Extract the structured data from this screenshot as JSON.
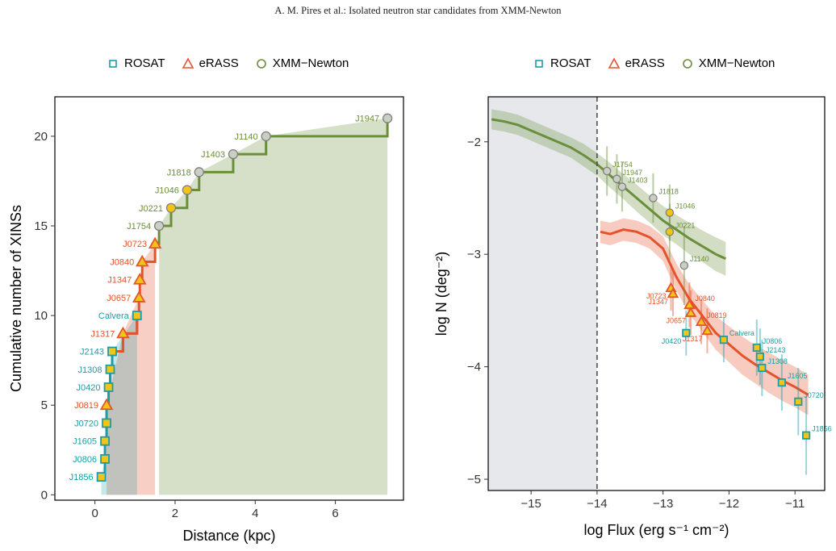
{
  "header": {
    "running_head": "A. M. Pires et al.: Isolated neutron star candidates from XMM-Newton"
  },
  "colors": {
    "rosat": "#1A9DA6",
    "erass": "#E5532A",
    "xmm": "#6B8E3C",
    "marker_fill": "#F2C418",
    "xmm_grey_fill": "#C9CFC2",
    "shade": "#E6E8EC"
  },
  "legend": [
    {
      "label": "ROSAT",
      "symbol": "square",
      "color": "#1A9DA6"
    },
    {
      "label": "eRASS",
      "symbol": "triangle",
      "color": "#E5532A"
    },
    {
      "label": "XMM−Newton",
      "symbol": "circle",
      "color": "#6B8E3C"
    }
  ],
  "chart_data": [
    {
      "type": "line",
      "xlabel": "Distance (kpc)",
      "ylabel": "Cumulative number of XINSs",
      "xlim": [
        -1.0,
        7.7
      ],
      "ylim": [
        -0.3,
        22.2
      ],
      "xticks": [
        0,
        2,
        4,
        6
      ],
      "yticks": [
        0,
        5,
        10,
        15,
        20
      ],
      "grid": false,
      "legend_position": "top",
      "points": [
        {
          "label": "J1856",
          "x": 0.16,
          "y": 1,
          "survey": "ROSAT",
          "fill": "yellow"
        },
        {
          "label": "J0806",
          "x": 0.25,
          "y": 2,
          "survey": "ROSAT",
          "fill": "yellow"
        },
        {
          "label": "J1605",
          "x": 0.25,
          "y": 3,
          "survey": "ROSAT",
          "fill": "yellow"
        },
        {
          "label": "J0720",
          "x": 0.29,
          "y": 4,
          "survey": "ROSAT",
          "fill": "yellow"
        },
        {
          "label": "J0819",
          "x": 0.29,
          "y": 5,
          "survey": "eRASS",
          "fill": "yellow"
        },
        {
          "label": "J0420",
          "x": 0.34,
          "y": 6,
          "survey": "ROSAT",
          "fill": "yellow"
        },
        {
          "label": "J1308",
          "x": 0.38,
          "y": 7,
          "survey": "ROSAT",
          "fill": "yellow"
        },
        {
          "label": "J2143",
          "x": 0.43,
          "y": 8,
          "survey": "ROSAT",
          "fill": "yellow"
        },
        {
          "label": "J1317",
          "x": 0.7,
          "y": 9,
          "survey": "eRASS",
          "fill": "yellow"
        },
        {
          "label": "Calvera",
          "x": 1.05,
          "y": 10,
          "survey": "ROSAT",
          "fill": "yellow"
        },
        {
          "label": "J0657",
          "x": 1.1,
          "y": 11,
          "survey": "eRASS",
          "fill": "yellow"
        },
        {
          "label": "J1347",
          "x": 1.12,
          "y": 12,
          "survey": "eRASS",
          "fill": "yellow"
        },
        {
          "label": "J0840",
          "x": 1.18,
          "y": 13,
          "survey": "eRASS",
          "fill": "yellow"
        },
        {
          "label": "J0723",
          "x": 1.5,
          "y": 14,
          "survey": "eRASS",
          "fill": "yellow"
        },
        {
          "label": "J1754",
          "x": 1.6,
          "y": 15,
          "survey": "XMM",
          "fill": "grey"
        },
        {
          "label": "J0221",
          "x": 1.9,
          "y": 16,
          "survey": "XMM",
          "fill": "yellow"
        },
        {
          "label": "J1046",
          "x": 2.3,
          "y": 17,
          "survey": "XMM",
          "fill": "yellow"
        },
        {
          "label": "J1818",
          "x": 2.6,
          "y": 18,
          "survey": "XMM",
          "fill": "grey"
        },
        {
          "label": "J1403",
          "x": 3.45,
          "y": 19,
          "survey": "XMM",
          "fill": "grey"
        },
        {
          "label": "J1140",
          "x": 4.27,
          "y": 20,
          "survey": "XMM",
          "fill": "grey"
        },
        {
          "label": "J1947",
          "x": 7.3,
          "y": 21,
          "survey": "XMM",
          "fill": "grey"
        }
      ]
    },
    {
      "type": "line",
      "xlabel": "log Flux (erg s⁻¹ cm⁻²)",
      "ylabel": "log N (deg⁻²)",
      "xlim": [
        -15.65,
        -10.55
      ],
      "ylim": [
        -5.1,
        -1.6
      ],
      "xticks": [
        -15,
        -14,
        -13,
        -12,
        -11
      ],
      "yticks": [
        -2,
        -3,
        -4,
        -5
      ],
      "vline_x": -14,
      "grid": false,
      "legend_position": "top",
      "series": [
        {
          "name": "XMM−Newton",
          "x": [
            -15.6,
            -15.4,
            -15.2,
            -15.0,
            -14.8,
            -14.6,
            -14.4,
            -14.2,
            -14.0,
            -13.8,
            -13.6,
            -13.4,
            -13.2,
            -13.0,
            -12.8,
            -12.6,
            -12.4,
            -12.2,
            -12.05
          ],
          "y": [
            -1.8,
            -1.82,
            -1.85,
            -1.9,
            -1.95,
            -2.0,
            -2.05,
            -2.12,
            -2.2,
            -2.3,
            -2.4,
            -2.5,
            -2.6,
            -2.7,
            -2.78,
            -2.86,
            -2.93,
            -3.0,
            -3.04
          ],
          "band": [
            0.09,
            0.09,
            0.09,
            0.09,
            0.09,
            0.09,
            0.09,
            0.1,
            0.1,
            0.11,
            0.11,
            0.12,
            0.12,
            0.13,
            0.13,
            0.14,
            0.14,
            0.15,
            0.15
          ]
        },
        {
          "name": "eRASS",
          "x": [
            -13.95,
            -13.8,
            -13.6,
            -13.4,
            -13.2,
            -13.0,
            -12.8,
            -12.6,
            -12.4,
            -12.2,
            -12.0,
            -11.8,
            -11.6,
            -11.4,
            -11.2,
            -11.0,
            -10.8
          ],
          "y": [
            -2.8,
            -2.82,
            -2.78,
            -2.8,
            -2.85,
            -2.95,
            -3.2,
            -3.4,
            -3.55,
            -3.7,
            -3.8,
            -3.9,
            -3.98,
            -4.05,
            -4.12,
            -4.18,
            -4.25
          ],
          "band": [
            0.1,
            0.1,
            0.1,
            0.1,
            0.1,
            0.11,
            0.12,
            0.13,
            0.14,
            0.15,
            0.16,
            0.17,
            0.17,
            0.18,
            0.18,
            0.18,
            0.18
          ]
        }
      ],
      "points": [
        {
          "label": "J1754",
          "x": -13.85,
          "y": -2.26,
          "survey": "XMM",
          "fill": "grey",
          "err": 0.22
        },
        {
          "label": "J1947",
          "x": -13.7,
          "y": -2.33,
          "survey": "XMM",
          "fill": "grey",
          "err": 0.22
        },
        {
          "label": "J1403",
          "x": -13.62,
          "y": -2.4,
          "survey": "XMM",
          "fill": "grey",
          "err": 0.22
        },
        {
          "label": "J1818",
          "x": -13.15,
          "y": -2.5,
          "survey": "XMM",
          "fill": "grey",
          "err": 0.22
        },
        {
          "label": "J1046",
          "x": -12.9,
          "y": -2.63,
          "survey": "XMM",
          "fill": "yellow",
          "err": 0.25
        },
        {
          "label": "J0221",
          "x": -12.9,
          "y": -2.8,
          "survey": "XMM",
          "fill": "yellow",
          "err": 0.25
        },
        {
          "label": "J1140",
          "x": -12.68,
          "y": -3.1,
          "survey": "XMM",
          "fill": "grey",
          "err": 0.35
        },
        {
          "label": "J0723",
          "x": -12.88,
          "y": -3.3,
          "survey": "eRASS",
          "fill": "yellow",
          "err": 0.2
        },
        {
          "label": "J1347",
          "x": -12.85,
          "y": -3.35,
          "survey": "eRASS",
          "fill": "yellow",
          "err": 0.2
        },
        {
          "label": "J0840",
          "x": -12.6,
          "y": -3.45,
          "survey": "eRASS",
          "fill": "yellow",
          "err": 0.2
        },
        {
          "label": "J0819",
          "x": -12.42,
          "y": -3.6,
          "survey": "eRASS",
          "fill": "yellow",
          "err": 0.2
        },
        {
          "label": "J0657",
          "x": -12.58,
          "y": -3.52,
          "survey": "eRASS",
          "fill": "yellow",
          "err": 0.2
        },
        {
          "label": "J1317",
          "x": -12.33,
          "y": -3.68,
          "survey": "eRASS",
          "fill": "yellow",
          "err": 0.2
        },
        {
          "label": "Calvera",
          "x": -12.08,
          "y": -3.76,
          "survey": "ROSAT",
          "fill": "yellow",
          "err": 0.2
        },
        {
          "label": "J0420",
          "x": -12.65,
          "y": -3.7,
          "survey": "ROSAT",
          "fill": "yellow",
          "err": 0.2
        },
        {
          "label": "J0806",
          "x": -11.58,
          "y": -3.83,
          "survey": "ROSAT",
          "fill": "yellow",
          "err": 0.25
        },
        {
          "label": "J2143",
          "x": -11.53,
          "y": -3.91,
          "survey": "ROSAT",
          "fill": "yellow",
          "err": 0.25
        },
        {
          "label": "J1308",
          "x": -11.5,
          "y": -4.01,
          "survey": "ROSAT",
          "fill": "yellow",
          "err": 0.25
        },
        {
          "label": "J1605",
          "x": -11.2,
          "y": -4.14,
          "survey": "ROSAT",
          "fill": "yellow",
          "err": 0.25
        },
        {
          "label": "J0720",
          "x": -10.95,
          "y": -4.31,
          "survey": "ROSAT",
          "fill": "yellow",
          "err": 0.3
        },
        {
          "label": "J1856",
          "x": -10.83,
          "y": -4.61,
          "survey": "ROSAT",
          "fill": "yellow",
          "err": 0.35
        }
      ]
    }
  ]
}
